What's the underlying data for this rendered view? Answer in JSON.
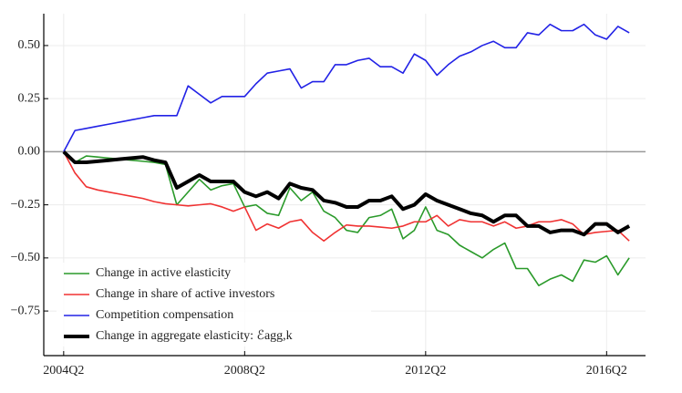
{
  "chart_data": {
    "type": "line",
    "x": [
      2004.25,
      2004.5,
      2004.75,
      2005,
      2005.25,
      2005.5,
      2005.75,
      2006,
      2006.25,
      2006.5,
      2006.75,
      2007,
      2007.25,
      2007.5,
      2007.75,
      2008,
      2008.25,
      2008.5,
      2008.75,
      2009,
      2009.25,
      2009.5,
      2009.75,
      2010,
      2010.25,
      2010.5,
      2010.75,
      2011,
      2011.25,
      2011.5,
      2011.75,
      2012,
      2012.25,
      2012.5,
      2012.75,
      2013,
      2013.25,
      2013.5,
      2013.75,
      2014,
      2014.25,
      2014.5,
      2014.75,
      2015,
      2015.25,
      2015.5,
      2015.75,
      2016,
      2016.25,
      2016.5,
      2016.75
    ],
    "series": [
      {
        "name": "Change in active elasticity",
        "color": "#2a9a2a",
        "width": 1.6,
        "values": [
          0,
          -0.05,
          -0.02,
          -0.025,
          -0.03,
          -0.035,
          -0.04,
          -0.045,
          -0.05,
          -0.06,
          -0.25,
          -0.19,
          -0.13,
          -0.18,
          -0.16,
          -0.15,
          -0.26,
          -0.25,
          -0.29,
          -0.3,
          -0.17,
          -0.23,
          -0.19,
          -0.28,
          -0.31,
          -0.37,
          -0.38,
          -0.31,
          -0.3,
          -0.27,
          -0.41,
          -0.37,
          -0.26,
          -0.37,
          -0.39,
          -0.44,
          -0.47,
          -0.5,
          -0.46,
          -0.43,
          -0.55,
          -0.55,
          -0.63,
          -0.6,
          -0.58,
          -0.61,
          -0.51,
          -0.52,
          -0.49,
          -0.58,
          -0.5
        ]
      },
      {
        "name": "Change in share of active investors",
        "color": "#f03232",
        "width": 1.6,
        "values": [
          0,
          -0.1,
          -0.165,
          -0.18,
          -0.19,
          -0.2,
          -0.21,
          -0.22,
          -0.235,
          -0.245,
          -0.25,
          -0.255,
          -0.25,
          -0.245,
          -0.26,
          -0.28,
          -0.26,
          -0.37,
          -0.34,
          -0.36,
          -0.33,
          -0.32,
          -0.38,
          -0.42,
          -0.38,
          -0.345,
          -0.35,
          -0.35,
          -0.355,
          -0.36,
          -0.35,
          -0.33,
          -0.33,
          -0.3,
          -0.35,
          -0.32,
          -0.33,
          -0.33,
          -0.35,
          -0.33,
          -0.36,
          -0.35,
          -0.33,
          -0.33,
          -0.32,
          -0.34,
          -0.39,
          -0.38,
          -0.375,
          -0.37,
          -0.42
        ]
      },
      {
        "name": "Competition compensation",
        "color": "#2222e6",
        "width": 1.6,
        "values": [
          0,
          0.1,
          0.11,
          0.12,
          0.13,
          0.14,
          0.15,
          0.16,
          0.17,
          0.17,
          0.17,
          0.31,
          0.27,
          0.23,
          0.26,
          0.26,
          0.26,
          0.32,
          0.37,
          0.38,
          0.39,
          0.3,
          0.33,
          0.33,
          0.41,
          0.41,
          0.43,
          0.44,
          0.4,
          0.4,
          0.37,
          0.46,
          0.43,
          0.36,
          0.41,
          0.45,
          0.47,
          0.5,
          0.52,
          0.49,
          0.49,
          0.56,
          0.55,
          0.6,
          0.57,
          0.57,
          0.6,
          0.55,
          0.53,
          0.59,
          0.56
        ]
      },
      {
        "name": "Change in aggregate elasticity: ℰagg,k",
        "color": "#000000",
        "width": 4,
        "values": [
          0,
          -0.05,
          -0.05,
          -0.045,
          -0.04,
          -0.035,
          -0.03,
          -0.025,
          -0.04,
          -0.05,
          -0.17,
          -0.14,
          -0.11,
          -0.14,
          -0.14,
          -0.14,
          -0.19,
          -0.21,
          -0.19,
          -0.22,
          -0.15,
          -0.17,
          -0.18,
          -0.23,
          -0.24,
          -0.26,
          -0.26,
          -0.23,
          -0.23,
          -0.21,
          -0.27,
          -0.25,
          -0.2,
          -0.23,
          -0.25,
          -0.27,
          -0.29,
          -0.3,
          -0.33,
          -0.3,
          -0.3,
          -0.35,
          -0.35,
          -0.38,
          -0.37,
          -0.37,
          -0.39,
          -0.34,
          -0.34,
          -0.38,
          -0.35
        ]
      }
    ],
    "xlim": [
      2003.81,
      2017.11
    ],
    "xticks": [
      {
        "value": 2004.25,
        "label": "2004Q2"
      },
      {
        "value": 2008.25,
        "label": "2008Q2"
      },
      {
        "value": 2012.25,
        "label": "2012Q2"
      },
      {
        "value": 2016.25,
        "label": "2016Q2"
      }
    ],
    "ylim": [
      -0.96,
      0.65
    ],
    "yticks": [
      {
        "value": -0.75,
        "label": "−0.75"
      },
      {
        "value": -0.5,
        "label": "−0.50"
      },
      {
        "value": -0.25,
        "label": "−0.25"
      },
      {
        "value": 0,
        "label": "0.00"
      },
      {
        "value": 0.25,
        "label": "0.25"
      },
      {
        "value": 0.5,
        "label": "0.50"
      }
    ],
    "hline": 0,
    "grid": true,
    "legend": "lower left"
  }
}
